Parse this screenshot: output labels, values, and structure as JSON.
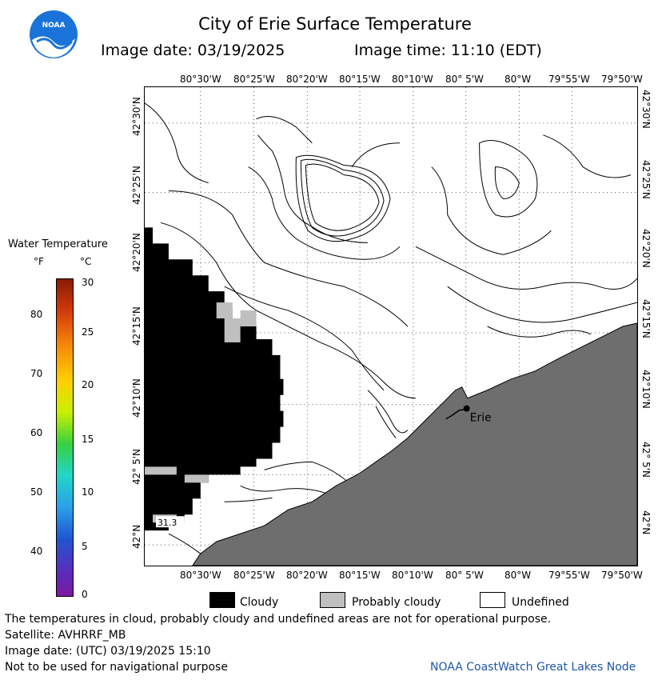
{
  "header": {
    "logo_text": "NOAA",
    "title": "City of Erie Surface Temperature",
    "image_date_label": "Image date: 03/19/2025",
    "image_time_label": "Image time: 11:10 (EDT)"
  },
  "map": {
    "top_lon_labels": [
      "80°30'W",
      "80°25'W",
      "80°20'W",
      "80°15'W",
      "80°10'W",
      "80° 5'W",
      "80°W",
      "79°55'W",
      "79°50'W"
    ],
    "bottom_lon_labels": [
      "80°30'W",
      "80°25'W",
      "80°20'W",
      "80°15'W",
      "80°10'W",
      "80° 5'W",
      "80°W",
      "79°55'W",
      "79°50'W"
    ],
    "left_lat_labels": [
      "42°30'N",
      "42°25'N",
      "42°20'N",
      "42°15'N",
      "42°10'N",
      "42° 5'N",
      "42°N"
    ],
    "right_lat_labels": [
      "42°30'N",
      "42°25'N",
      "42°20'N",
      "42°15'N",
      "42°10'N",
      "42° 5'N",
      "42°N"
    ],
    "city_label": "Erie",
    "value_label": "31.3",
    "colors": {
      "cloudy": "#000000",
      "probably_cloudy": "#bfbfbf",
      "land": "#6e6e6e",
      "water": "#ffffff"
    }
  },
  "legend": {
    "title": "Water Temperature",
    "unit_f": "°F",
    "unit_c": "°C",
    "f_ticks": [
      "80",
      "70",
      "60",
      "50",
      "40"
    ],
    "c_ticks": [
      "30",
      "25",
      "20",
      "15",
      "10",
      "5",
      "0"
    ]
  },
  "key": {
    "cloudy": "Cloudy",
    "probably_cloudy": "Probably cloudy",
    "undefined": "Undefined"
  },
  "footer": {
    "disclaimer": "The temperatures in cloud, probably cloudy and undefined areas are not for operational purpose.",
    "satellite": "Satellite: AVHRRF_MB",
    "utc_date": "Image date: (UTC) 03/19/2025  15:10",
    "nav_warning": "Not to be used for navigational purpose",
    "credit": "NOAA CoastWatch Great Lakes Node"
  }
}
